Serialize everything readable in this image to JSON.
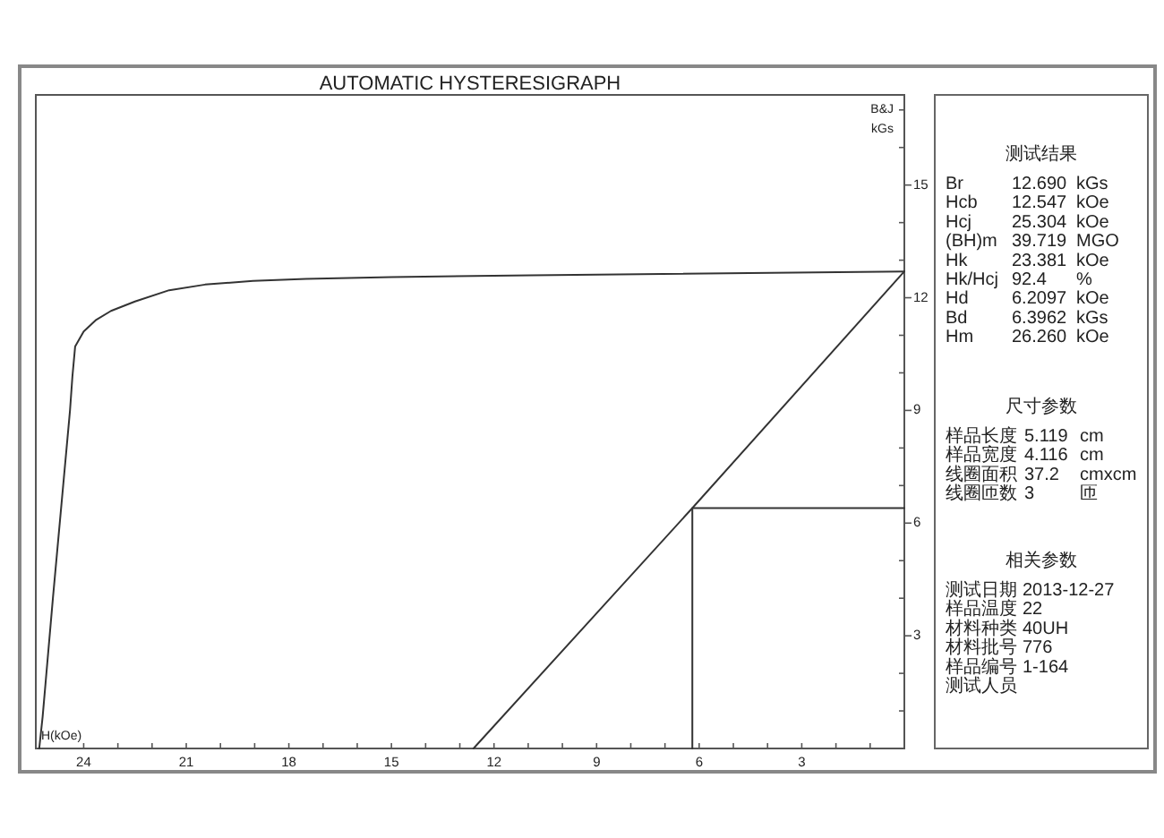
{
  "chart_data": [
    {
      "type": "line",
      "title": "AUTOMATIC HYSTERESIGRAPH",
      "xlabel": "H(kOe)",
      "ylabel": "B&J kGs",
      "xlim": [
        25.4,
        0
      ],
      "ylim": [
        0,
        17.4
      ],
      "xticks": [
        24,
        {
          "value": 23,
          "label": null
        },
        {
          "value": 22,
          "label": null
        },
        21,
        {
          "value": 20,
          "label": null
        },
        {
          "value": 19,
          "label": null
        },
        18,
        {
          "value": 17,
          "label": null
        },
        {
          "value": 16,
          "label": null
        },
        15,
        {
          "value": 14,
          "label": null
        },
        {
          "value": 13,
          "label": null
        },
        12,
        {
          "value": 11,
          "label": null
        },
        {
          "value": 10,
          "label": null
        },
        9,
        {
          "value": 8,
          "label": null
        },
        {
          "value": 7,
          "label": null
        },
        6,
        {
          "value": 5,
          "label": null
        },
        {
          "value": 4,
          "label": null
        },
        3,
        {
          "value": 2,
          "label": null
        },
        {
          "value": 1,
          "label": null
        }
      ],
      "yticks": [
        {
          "value": 1,
          "label": null
        },
        {
          "value": 2,
          "label": null
        },
        3,
        {
          "value": 4,
          "label": null
        },
        {
          "value": 5,
          "label": null
        },
        6,
        {
          "value": 7,
          "label": null
        },
        {
          "value": 8,
          "label": null
        },
        9,
        {
          "value": 10,
          "label": null
        },
        {
          "value": 11,
          "label": null
        },
        12,
        {
          "value": 13,
          "label": null
        },
        {
          "value": 14,
          "label": null
        },
        15,
        {
          "value": 16,
          "label": null
        },
        {
          "value": 17,
          "label": null
        }
      ],
      "series": [
        {
          "color": "#333333",
          "x": [
            25.3,
            25.2,
            24.9,
            24.4,
            24.33,
            24.25,
            24.0,
            23.65,
            23.2,
            22.5,
            21.5,
            20.45,
            19.05,
            17.5,
            15.0,
            10.9,
            0
          ],
          "values": [
            0,
            0.85,
            4.0,
            9.0,
            9.9,
            10.7,
            11.1,
            11.4,
            11.65,
            11.9,
            12.2,
            12.35,
            12.45,
            12.5,
            12.55,
            12.6,
            12.7
          ]
        },
        {
          "color": "#333333",
          "x": [
            12.6,
            6.2,
            0
          ],
          "values": [
            0,
            6.4,
            12.7
          ]
        },
        {
          "color": "#333333",
          "x": [
            6.2,
            6.2,
            0
          ],
          "values": [
            0,
            6.4,
            6.4
          ]
        }
      ]
    },
    {
      "type": "other",
      "title": "测试结果",
      "annotations": [
        "Br 12.690 kGs",
        "Hcb 12.547 kOe",
        "Hcj 25.304 kOe",
        "(BH)m 39.719 MGO",
        "Hk 23.381 kOe",
        "Hk/Hcj 92.4 %",
        "Hd 6.2097 kOe",
        "Bd 6.3962 kGs",
        "Hm 26.260 kOe"
      ]
    },
    {
      "type": "other",
      "title": "尺寸参数",
      "annotations": [
        "样品长度 5.119 cm",
        "样品宽度 4.116 cm",
        "线圈面积 37.2 cmxcm",
        "线圈匝数 3 匝"
      ]
    },
    {
      "type": "other",
      "title": "相关参数",
      "annotations": [
        "测试日期 2013-12-27",
        "样品温度 22",
        "材料种类 40UH",
        "材料批号 776",
        "样品编号 1-164",
        "测试人员"
      ]
    }
  ]
}
